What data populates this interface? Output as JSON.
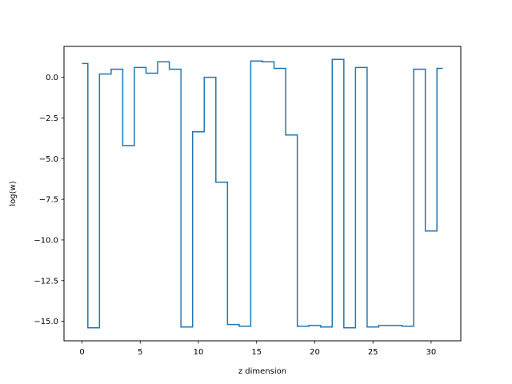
{
  "chart_data": {
    "type": "line",
    "drawstyle": "steps-mid",
    "title": "",
    "xlabel": "z dimension",
    "ylabel": "log(w)",
    "xlim": [
      -1.55,
      32.55
    ],
    "ylim": [
      -16.2,
      1.9
    ],
    "xticks": [
      0,
      5,
      10,
      15,
      20,
      25,
      30
    ],
    "xtick_labels": [
      "0",
      "5",
      "10",
      "15",
      "20",
      "25",
      "30"
    ],
    "yticks": [
      0.0,
      -2.5,
      -5.0,
      -7.5,
      -10.0,
      -12.5,
      -15.0
    ],
    "ytick_labels": [
      "0.0",
      "−2.5",
      "−5.0",
      "−7.5",
      "−10.0",
      "−12.5",
      "−15.0"
    ],
    "grid": false,
    "legend": "none",
    "line_color": "#1f77b4",
    "series": [
      {
        "x": [
          0,
          1,
          2,
          3,
          4,
          5,
          6,
          7,
          8,
          9,
          10,
          11,
          12,
          13,
          14,
          15,
          16,
          17,
          18,
          19,
          20,
          21,
          22,
          23,
          24,
          25,
          26,
          27,
          28,
          29,
          30,
          31
        ],
        "values": [
          0.85,
          -15.4,
          0.2,
          0.5,
          -4.2,
          0.6,
          0.25,
          0.95,
          0.5,
          -15.35,
          -3.35,
          0.0,
          -6.45,
          -15.2,
          -15.3,
          1.0,
          0.95,
          0.55,
          -3.55,
          -15.3,
          -15.25,
          -15.35,
          1.1,
          -15.4,
          0.6,
          -15.35,
          -15.25,
          -15.25,
          -15.3,
          0.5,
          -9.45,
          0.55
        ]
      }
    ]
  }
}
